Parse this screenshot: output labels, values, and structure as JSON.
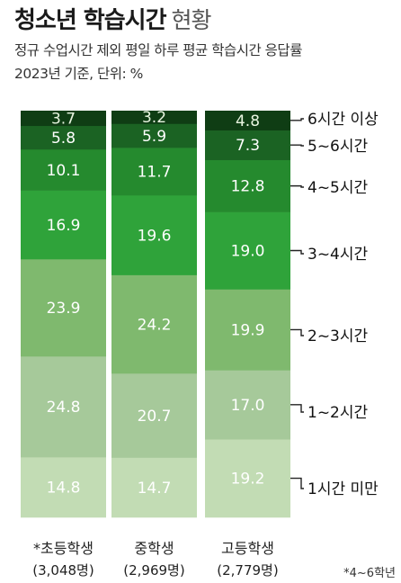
{
  "header": {
    "title_bold": "청소년 학습시간",
    "title_light": "현황",
    "subtitle_line1": "정규 수업시간 제외 평일 하루 평균 학습시간 응답률",
    "subtitle_line2": "2023년 기준, 단위: %"
  },
  "footnote": "*4~6학년",
  "colors": {
    "band_6plus": "#0f3d14",
    "band_5to6": "#1b6323",
    "band_4to5": "#258a2e",
    "band_3to4": "#2fa33a",
    "band_2to3": "#7fb96e",
    "band_1to2": "#a6c99a",
    "band_under1": "#c2dcb4"
  },
  "chart_data": {
    "type": "bar",
    "stacked": true,
    "categories": [
      "*초등학생",
      "중학생",
      "고등학생"
    ],
    "category_counts": [
      "(3,048명)",
      "(2,969명)",
      "(2,779명)"
    ],
    "series": [
      {
        "name": "1시간 미만",
        "values": [
          14.8,
          14.7,
          19.2
        ]
      },
      {
        "name": "1~2시간",
        "values": [
          24.8,
          20.7,
          17.0
        ]
      },
      {
        "name": "2~3시간",
        "values": [
          23.9,
          24.2,
          19.9
        ]
      },
      {
        "name": "3~4시간",
        "values": [
          16.9,
          19.6,
          19.0
        ]
      },
      {
        "name": "4~5시간",
        "values": [
          10.1,
          11.7,
          12.8
        ]
      },
      {
        "name": "5~6시간",
        "values": [
          5.8,
          5.9,
          7.3
        ]
      },
      {
        "name": "6시간 이상",
        "values": [
          3.7,
          3.2,
          4.8
        ]
      }
    ],
    "ylim": [
      0,
      100
    ],
    "legend_position": "right"
  }
}
